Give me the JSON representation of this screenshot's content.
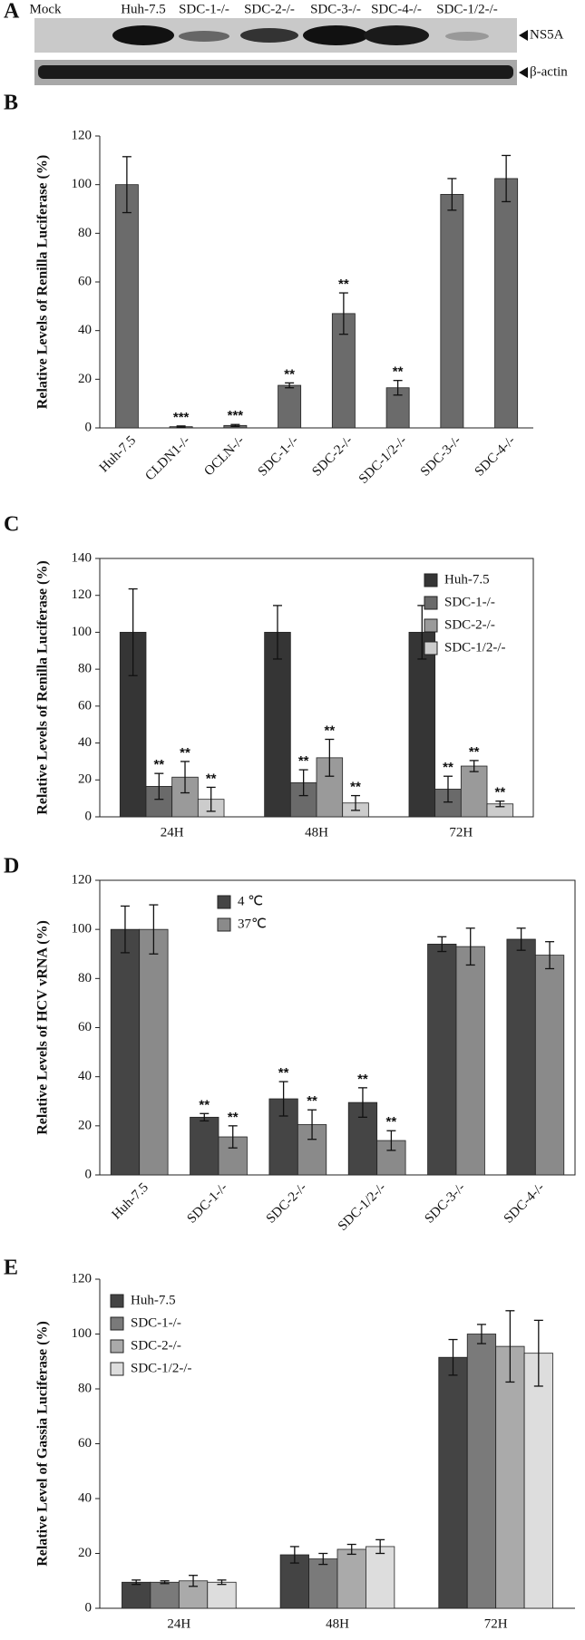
{
  "blot": {
    "panel": "A",
    "lanes": [
      "Mock",
      "Huh-7.5",
      "SDC-1-/-",
      "SDC-2-/-",
      "SDC-3-/-",
      "SDC-4-/-",
      "SDC-1/2-/-"
    ],
    "bands": [
      "NS5A",
      "β-actin"
    ]
  },
  "chart_data": [
    {
      "type": "bar",
      "panel": "B",
      "ylabel": "Relative Levels of Renilla Luciferase (%)",
      "categories": [
        "Huh-7.5",
        "CLDN1-/-",
        "OCLN-/-",
        "SDC-1-/-",
        "SDC-2-/-",
        "SDC-1/2-/-",
        "SDC-3-/-",
        "SDC-4-/-"
      ],
      "values": [
        100,
        0.5,
        1,
        17.5,
        47,
        16.5,
        96,
        102.5
      ],
      "errors": [
        11.5,
        0.3,
        0.4,
        1,
        8.5,
        3,
        6.5,
        9.5
      ],
      "annotations": [
        null,
        "***",
        "***",
        "**",
        "**",
        "**",
        null,
        null
      ],
      "color": "#6b6b6b",
      "ylim": [
        0,
        120
      ],
      "yticks": [
        0,
        20,
        40,
        60,
        80,
        100,
        120
      ],
      "xlabel_rotation": -45
    },
    {
      "type": "bar",
      "panel": "C",
      "ylabel": "Relative Levels of Renilla Luciferase (%)",
      "categories": [
        "24H",
        "48H",
        "72H"
      ],
      "series": [
        {
          "name": "Huh-7.5",
          "color": "#353535",
          "values": [
            100,
            100,
            100
          ],
          "errors": [
            23.5,
            14.5,
            14.5
          ],
          "annotations": [
            null,
            null,
            null
          ]
        },
        {
          "name": "SDC-1-/-",
          "color": "#6a6a6a",
          "values": [
            16.5,
            18.5,
            15
          ],
          "errors": [
            7,
            7,
            7
          ],
          "annotations": [
            "**",
            "**",
            "**"
          ]
        },
        {
          "name": "SDC-2-/-",
          "color": "#9a9a9a",
          "values": [
            21.5,
            32,
            27.5
          ],
          "errors": [
            8.5,
            10,
            3
          ],
          "annotations": [
            "**",
            "**",
            "**"
          ]
        },
        {
          "name": "SDC-1/2-/-",
          "color": "#cccccc",
          "values": [
            9.5,
            7.5,
            7
          ],
          "errors": [
            6.5,
            4,
            1.5
          ],
          "annotations": [
            "**",
            "**",
            "**"
          ]
        }
      ],
      "ylim": [
        0,
        140
      ],
      "yticks": [
        0,
        20,
        40,
        60,
        80,
        100,
        120,
        140
      ],
      "legend": "top-right"
    },
    {
      "type": "bar",
      "panel": "D",
      "ylabel": "Relative Levels of HCV vRNA (%)",
      "categories": [
        "Huh-7.5",
        "SDC-1-/-",
        "SDC-2-/-",
        "SDC-1/2-/-",
        "SDC-3-/-",
        "SDC-4-/-"
      ],
      "series": [
        {
          "name": "4 ℃",
          "color": "#454545",
          "values": [
            100,
            23.5,
            31,
            29.5,
            94,
            96
          ],
          "errors": [
            9.5,
            1.5,
            7,
            6,
            3,
            4.5
          ],
          "annotations": [
            null,
            "**",
            "**",
            "**",
            null,
            null
          ]
        },
        {
          "name": "37℃",
          "color": "#8a8a8a",
          "values": [
            100,
            15.5,
            20.5,
            14,
            93,
            89.5
          ],
          "errors": [
            10,
            4.5,
            6,
            4,
            7.5,
            5.5
          ],
          "annotations": [
            null,
            "**",
            "**",
            "**",
            null,
            null
          ]
        }
      ],
      "ylim": [
        0,
        120
      ],
      "yticks": [
        0,
        20,
        40,
        60,
        80,
        100,
        120
      ],
      "legend": "top-center",
      "xlabel_rotation": -45
    },
    {
      "type": "bar",
      "panel": "E",
      "ylabel": "Relative Level of Gassia Luciferase (%)",
      "categories": [
        "24H",
        "48H",
        "72H"
      ],
      "series": [
        {
          "name": "Huh-7.5",
          "color": "#444444",
          "values": [
            9.5,
            19.5,
            91.5
          ],
          "errors": [
            0.8,
            3,
            6.5
          ]
        },
        {
          "name": "SDC-1-/-",
          "color": "#7a7a7a",
          "values": [
            9.5,
            18,
            100
          ],
          "errors": [
            0.5,
            2,
            3.5
          ]
        },
        {
          "name": "SDC-2-/-",
          "color": "#aaaaaa",
          "values": [
            10,
            21.5,
            95.5
          ],
          "errors": [
            2,
            1.8,
            13
          ]
        },
        {
          "name": "SDC-1/2-/-",
          "color": "#dddddd",
          "values": [
            9.5,
            22.5,
            93
          ],
          "errors": [
            0.8,
            2.5,
            12
          ]
        }
      ],
      "ylim": [
        0,
        120
      ],
      "yticks": [
        0,
        20,
        40,
        60,
        80,
        100,
        120
      ],
      "legend": "top-left"
    }
  ]
}
